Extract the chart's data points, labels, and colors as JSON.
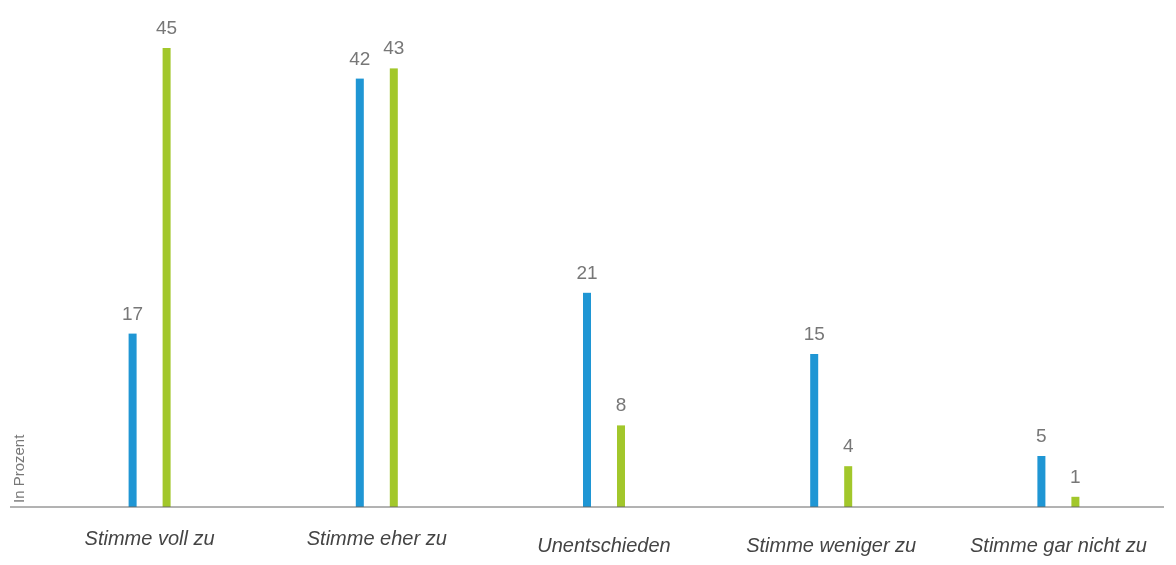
{
  "chart_data": {
    "type": "bar",
    "ylabel": "In Prozent",
    "categories": [
      "Stimme voll zu",
      "Stimme eher zu",
      "Unentschieden",
      "Stimme weniger zu",
      "Stimme gar nicht zu"
    ],
    "series": [
      {
        "color": "#1f96d4",
        "values": [
          17,
          42,
          21,
          15,
          5
        ]
      },
      {
        "color": "#a2c72b",
        "values": [
          45,
          43,
          8,
          4,
          1
        ]
      }
    ],
    "data_labels": true,
    "grid": false
  }
}
